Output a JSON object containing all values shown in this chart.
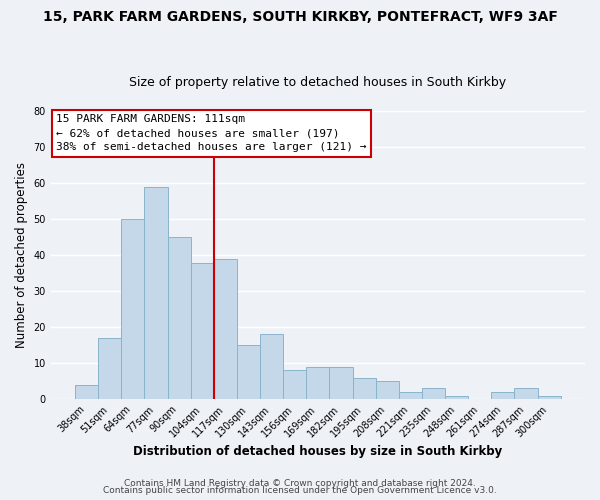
{
  "title1": "15, PARK FARM GARDENS, SOUTH KIRKBY, PONTEFRACT, WF9 3AF",
  "title2": "Size of property relative to detached houses in South Kirkby",
  "xlabel": "Distribution of detached houses by size in South Kirkby",
  "ylabel": "Number of detached properties",
  "bar_color": "#c5d8ea",
  "bar_edge_color": "#8ab4cc",
  "categories": [
    "38sqm",
    "51sqm",
    "64sqm",
    "77sqm",
    "90sqm",
    "104sqm",
    "117sqm",
    "130sqm",
    "143sqm",
    "156sqm",
    "169sqm",
    "182sqm",
    "195sqm",
    "208sqm",
    "221sqm",
    "235sqm",
    "248sqm",
    "261sqm",
    "274sqm",
    "287sqm",
    "300sqm"
  ],
  "values": [
    4,
    17,
    50,
    59,
    45,
    38,
    39,
    15,
    18,
    8,
    9,
    9,
    6,
    5,
    2,
    3,
    1,
    0,
    2,
    3,
    1
  ],
  "ylim": [
    0,
    80
  ],
  "yticks": [
    0,
    10,
    20,
    30,
    40,
    50,
    60,
    70,
    80
  ],
  "marker_label": "15 PARK FARM GARDENS: 111sqm",
  "annotation_line1": "← 62% of detached houses are smaller (197)",
  "annotation_line2": "38% of semi-detached houses are larger (121) →",
  "annotation_box_color": "#ffffff",
  "annotation_box_edge_color": "#cc0000",
  "marker_line_color": "#cc0000",
  "footer1": "Contains HM Land Registry data © Crown copyright and database right 2024.",
  "footer2": "Contains public sector information licensed under the Open Government Licence v3.0.",
  "bg_color": "#eef2f7",
  "grid_color": "#ffffff",
  "title_fontsize": 10,
  "subtitle_fontsize": 9,
  "tick_fontsize": 7,
  "label_fontsize": 8.5,
  "footer_fontsize": 6.5,
  "annot_fontsize": 8
}
